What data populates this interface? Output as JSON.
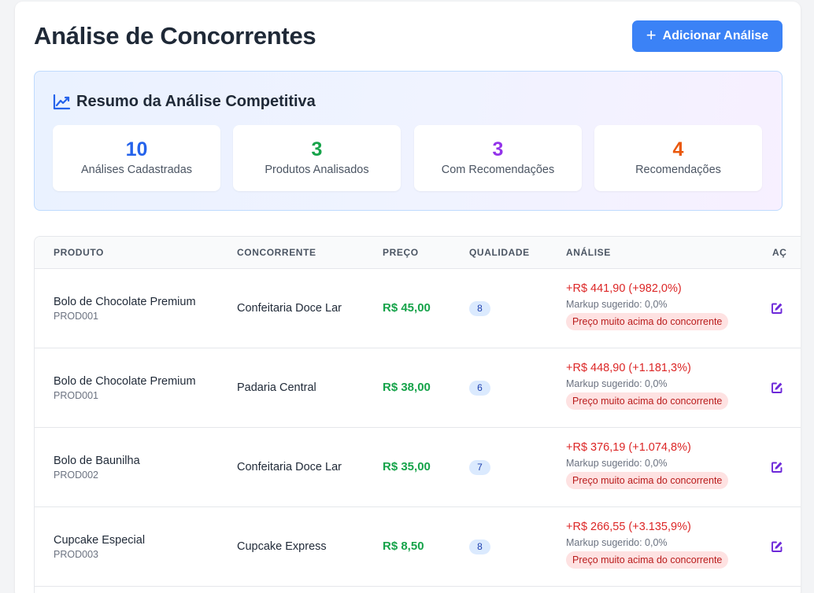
{
  "header": {
    "title": "Análise de Concorrentes",
    "add_button_label": "Adicionar Análise"
  },
  "summary": {
    "title": "Resumo da Análise Competitiva",
    "stats": [
      {
        "value": "10",
        "label": "Análises Cadastradas",
        "color": "#2563eb"
      },
      {
        "value": "3",
        "label": "Produtos Analisados",
        "color": "#16a34a"
      },
      {
        "value": "3",
        "label": "Com Recomendações",
        "color": "#9333ea"
      },
      {
        "value": "4",
        "label": "Recomendações",
        "color": "#ea580c"
      }
    ]
  },
  "table": {
    "columns": [
      "PRODUTO",
      "CONCORRENTE",
      "PREÇO",
      "QUALIDADE",
      "ANÁLISE",
      "AÇ"
    ],
    "rows": [
      {
        "product": "Bolo de Chocolate Premium",
        "code": "PROD001",
        "competitor": "Confeitaria Doce Lar",
        "price": "R$ 45,00",
        "quality": "8",
        "diff": "+R$ 441,90 (+982,0%)",
        "markup": "Markup sugerido: 0,0%",
        "badge": "Preço muito acima do concorrente"
      },
      {
        "product": "Bolo de Chocolate Premium",
        "code": "PROD001",
        "competitor": "Padaria Central",
        "price": "R$ 38,00",
        "quality": "6",
        "diff": "+R$ 448,90 (+1.181,3%)",
        "markup": "Markup sugerido: 0,0%",
        "badge": "Preço muito acima do concorrente"
      },
      {
        "product": "Bolo de Baunilha",
        "code": "PROD002",
        "competitor": "Confeitaria Doce Lar",
        "price": "R$ 35,00",
        "quality": "7",
        "diff": "+R$ 376,19 (+1.074,8%)",
        "markup": "Markup sugerido: 0,0%",
        "badge": "Preço muito acima do concorrente"
      },
      {
        "product": "Cupcake Especial",
        "code": "PROD003",
        "competitor": "Cupcake Express",
        "price": "R$ 8,50",
        "quality": "8",
        "diff": "+R$ 266,55 (+3.135,9%)",
        "markup": "Markup sugerido: 0,0%",
        "badge": "Preço muito acima do concorrente"
      }
    ]
  },
  "icons": {
    "add": "plus-icon",
    "summary": "chart-line-icon",
    "edit": "edit-icon"
  },
  "colors": {
    "primary": "#3b82f6",
    "price": "#16a34a",
    "diff": "#dc2626",
    "edit_icon": "#6d28d9"
  }
}
